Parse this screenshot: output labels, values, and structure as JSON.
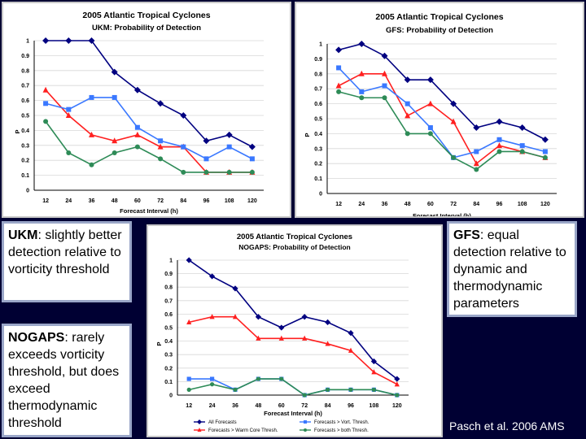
{
  "colors": {
    "all_forecasts": "#000080",
    "warm_core": "#ff2020",
    "vort_thresh": "#3a78ff",
    "both_thresh": "#2e8b57",
    "background": "#000033"
  },
  "notes": {
    "ukm_lead": "UKM",
    "ukm_text": ": slightly better detection relative to vorticity threshold",
    "nogaps_lead": "NOGAPS",
    "nogaps_text": ": rarely exceeds vorticity threshold, but does exceed thermodynamic threshold",
    "gfs_lead": "GFS",
    "gfs_text": ": equal detection relative to dynamic and thermodynamic parameters"
  },
  "credit": "Pasch et al. 2006 AMS",
  "chart_data": [
    {
      "id": "ukm",
      "type": "line",
      "title": [
        "2005 Atlantic Tropical Cyclones",
        "UKM: Probability of Detection"
      ],
      "xlabel": "Forecast Interval (h)",
      "ylabel": "P",
      "x": [
        12,
        24,
        36,
        48,
        60,
        72,
        84,
        96,
        108,
        120
      ],
      "ylim": [
        0,
        1
      ],
      "yticks": [
        "0",
        "0.1",
        "0.2",
        "0.3",
        "0.4",
        "0.5",
        "0.6",
        "0.7",
        "0.8",
        "0.9",
        "1"
      ],
      "series": [
        {
          "key": "all_forecasts",
          "marker": "diamond",
          "values": [
            1.0,
            1.0,
            1.0,
            0.79,
            0.67,
            0.58,
            0.5,
            0.33,
            0.37,
            0.29
          ]
        },
        {
          "key": "warm_core",
          "marker": "triangle",
          "values": [
            0.67,
            0.5,
            0.37,
            0.33,
            0.37,
            0.29,
            0.29,
            0.12,
            0.12,
            0.12
          ]
        },
        {
          "key": "vort_thresh",
          "marker": "square",
          "values": [
            0.58,
            0.54,
            0.62,
            0.62,
            0.42,
            0.33,
            0.29,
            0.21,
            0.29,
            0.21
          ]
        },
        {
          "key": "both_thresh",
          "marker": "circle",
          "values": [
            0.46,
            0.25,
            0.17,
            0.25,
            0.29,
            0.21,
            0.12,
            0.12,
            0.12,
            0.12
          ]
        }
      ]
    },
    {
      "id": "gfs",
      "type": "line",
      "title": [
        "2005 Atlantic Tropical Cyclones",
        "GFS:  Probability of Detection"
      ],
      "xlabel": "Forecast Interval (h)",
      "ylabel": "P",
      "x": [
        12,
        24,
        36,
        48,
        60,
        72,
        84,
        96,
        108,
        120
      ],
      "ylim": [
        0,
        1
      ],
      "yticks": [
        "0",
        "0.1",
        "0.2",
        "0.3",
        "0.4",
        "0.5",
        "0.6",
        "0.7",
        "0.8",
        "0.9",
        "1"
      ],
      "series": [
        {
          "key": "all_forecasts",
          "marker": "diamond",
          "values": [
            0.96,
            1.0,
            0.92,
            0.76,
            0.76,
            0.6,
            0.44,
            0.48,
            0.44,
            0.36
          ]
        },
        {
          "key": "warm_core",
          "marker": "triangle",
          "values": [
            0.72,
            0.8,
            0.8,
            0.52,
            0.6,
            0.48,
            0.2,
            0.32,
            0.28,
            0.24
          ]
        },
        {
          "key": "vort_thresh",
          "marker": "square",
          "values": [
            0.84,
            0.68,
            0.72,
            0.6,
            0.44,
            0.24,
            0.28,
            0.36,
            0.32,
            0.28
          ]
        },
        {
          "key": "both_thresh",
          "marker": "circle",
          "values": [
            0.68,
            0.64,
            0.64,
            0.4,
            0.4,
            0.24,
            0.16,
            0.28,
            0.28,
            0.24
          ]
        }
      ]
    },
    {
      "id": "nogaps",
      "type": "line",
      "title": [
        "2005 Atlantic Tropical Cyclones",
        "NOGAPS: Probability of Detection"
      ],
      "xlabel": "Forecast Interval (h)",
      "ylabel": "P",
      "x": [
        12,
        24,
        36,
        48,
        60,
        72,
        84,
        96,
        108,
        120
      ],
      "ylim": [
        0,
        1
      ],
      "yticks": [
        "0",
        "0.1",
        "0.2",
        "0.3",
        "0.4",
        "0.5",
        "0.6",
        "0.7",
        "0.8",
        "0.9",
        "1"
      ],
      "legend": [
        {
          "key": "all_forecasts",
          "marker": "diamond",
          "label": "All Forecasts"
        },
        {
          "key": "vort_thresh",
          "marker": "square",
          "label": "Forecasts > Vort. Thresh."
        },
        {
          "key": "warm_core",
          "marker": "triangle",
          "label": "Forecasts > Warm Core Thresh."
        },
        {
          "key": "both_thresh",
          "marker": "circle",
          "label": "Forecasts > both Thresh."
        }
      ],
      "series": [
        {
          "key": "all_forecasts",
          "marker": "diamond",
          "values": [
            1.0,
            0.88,
            0.79,
            0.58,
            0.5,
            0.58,
            0.54,
            0.46,
            0.25,
            0.12
          ]
        },
        {
          "key": "warm_core",
          "marker": "triangle",
          "values": [
            0.54,
            0.58,
            0.58,
            0.42,
            0.42,
            0.42,
            0.38,
            0.33,
            0.17,
            0.08
          ]
        },
        {
          "key": "vort_thresh",
          "marker": "square",
          "values": [
            0.12,
            0.12,
            0.04,
            0.12,
            0.12,
            0.0,
            0.04,
            0.04,
            0.04,
            0.0
          ]
        },
        {
          "key": "both_thresh",
          "marker": "circle",
          "values": [
            0.04,
            0.08,
            0.04,
            0.12,
            0.12,
            0.0,
            0.04,
            0.04,
            0.04,
            0.0
          ]
        }
      ]
    }
  ]
}
